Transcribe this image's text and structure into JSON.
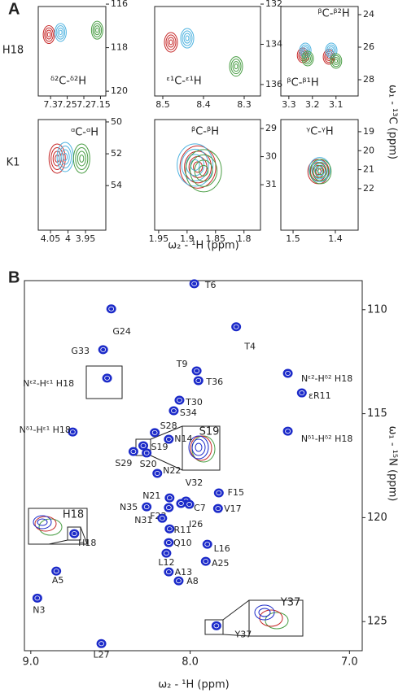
{
  "chart_data": [
    {
      "type": "scatter",
      "panel_label": "A",
      "row_label": "H18",
      "annotations": [
        "ᵟ²C-ᵟ²H"
      ],
      "xlim": [
        7.337,
        7.134
      ],
      "xticks": [
        7.3,
        7.25,
        7.2,
        7.15
      ],
      "ylim": [
        116.11,
        120.22
      ],
      "yticks": [
        116,
        118,
        120
      ],
      "series": [
        {
          "color": "#c62828",
          "x": [
            7.305
          ],
          "values": [
            117.4
          ]
        },
        {
          "color": "#4fb3e0",
          "x": [
            7.27
          ],
          "values": [
            117.3
          ]
        },
        {
          "color": "#4a9e45",
          "x": [
            7.16
          ],
          "values": [
            117.2
          ]
        }
      ]
    },
    {
      "type": "scatter",
      "annotations": [
        "ᵋ¹C-ᵋ¹H"
      ],
      "xlim": [
        8.52,
        8.26
      ],
      "xticks": [
        8.5,
        8.4,
        8.3
      ],
      "ylim": [
        132.12,
        136.57
      ],
      "yticks": [
        132,
        134,
        136
      ],
      "series": [
        {
          "color": "#c62828",
          "x": [
            8.48
          ],
          "values": [
            133.9
          ]
        },
        {
          "color": "#4fb3e0",
          "x": [
            8.44
          ],
          "values": [
            133.7
          ]
        },
        {
          "color": "#4a9e45",
          "x": [
            8.32
          ],
          "values": [
            135.1
          ]
        }
      ]
    },
    {
      "type": "scatter",
      "annotations": [
        "ᵝC-ᵝ²H",
        "ᵝC-ᵝ¹H"
      ],
      "xlim": [
        3.334,
        3.006
      ],
      "xticks": [
        3.3,
        3.2,
        3.1
      ],
      "ylim": [
        23.5,
        29.0
      ],
      "yticks": [
        24,
        26,
        28
      ],
      "ylabel": "ω₁ - ¹³C (ppm)",
      "series": [
        {
          "color": "#c62828",
          "x": [
            3.24,
            3.13
          ],
          "values": [
            26.5,
            26.6
          ]
        },
        {
          "color": "#4fb3e0",
          "x": [
            3.23,
            3.12
          ],
          "values": [
            26.2,
            26.2
          ]
        },
        {
          "color": "#4a9e45",
          "x": [
            3.22,
            3.1
          ],
          "values": [
            26.7,
            26.85
          ]
        }
      ]
    },
    {
      "type": "scatter",
      "row_label": "K1",
      "annotations": [
        "ᵅC-ᵅH"
      ],
      "xlim": [
        4.085,
        3.892
      ],
      "xticks": [
        4.05,
        4,
        3.95
      ],
      "ylim": [
        49.85,
        56.8
      ],
      "yticks": [
        50,
        52,
        54
      ],
      "series": [
        {
          "color": "#c62828",
          "x": [
            4.031
          ],
          "values": [
            52.3
          ]
        },
        {
          "color": "#4fb3e0",
          "x": [
            4.008
          ],
          "values": [
            52.2
          ]
        },
        {
          "color": "#4a9e45",
          "x": [
            3.961
          ],
          "values": [
            52.3
          ]
        }
      ]
    },
    {
      "type": "scatter",
      "annotations": [
        "ᵝC-ᵝH"
      ],
      "xlabel": "ω₂ - ¹H (ppm)",
      "xlim": [
        1.957,
        1.771
      ],
      "xticks": [
        1.95,
        1.9,
        1.85,
        1.8
      ],
      "ylim": [
        28.68,
        32.62
      ],
      "yticks": [
        29,
        30,
        31
      ],
      "series": [
        {
          "color": "#c62828",
          "x": [
            1.881
          ],
          "values": [
            30.37
          ]
        },
        {
          "color": "#4fb3e0",
          "x": [
            1.886
          ],
          "values": [
            30.3
          ]
        },
        {
          "color": "#4a9e45",
          "x": [
            1.871
          ],
          "values": [
            30.5
          ]
        }
      ]
    },
    {
      "type": "scatter",
      "annotations": [
        "ᵞC-ᵞH"
      ],
      "xlim": [
        1.529,
        1.346
      ],
      "xticks": [
        1.5,
        1.4
      ],
      "ylim": [
        18.36,
        24.19
      ],
      "yticks": [
        19,
        20,
        21,
        22
      ],
      "series": [
        {
          "color": "#c62828",
          "x": [
            1.44
          ],
          "values": [
            21.1
          ]
        },
        {
          "color": "#4fb3e0",
          "x": [
            1.437
          ],
          "values": [
            21.0
          ]
        },
        {
          "color": "#4a9e45",
          "x": [
            1.435
          ],
          "values": [
            21.1
          ]
        }
      ]
    },
    {
      "type": "peaks",
      "panel_label": "B",
      "xlabel": "ω₂ - ¹H (ppm)",
      "ylabel": "ω₁ - ¹⁵N (ppm)",
      "color": "#1c2bc9",
      "xlim": [
        9.04,
        6.92
      ],
      "xticks": [
        {
          "value": 9,
          "label": "9.0"
        },
        {
          "value": 8,
          "label": "8.0"
        },
        {
          "value": 7,
          "label": "7.0"
        }
      ],
      "ylim": [
        108.6,
        126.4
      ],
      "yticks": [
        110,
        115,
        120,
        125
      ],
      "labels": [
        "T6",
        "G24",
        "T4",
        "G33",
        "T9",
        "T36",
        "T30",
        "S34",
        "S28",
        "N14",
        "S19",
        "S29",
        "S20",
        "N22",
        "V32",
        "F15",
        "N21",
        "N35",
        "F23",
        "C7",
        "I26",
        "V17",
        "N31",
        "R11",
        "Q10",
        "L16",
        "H18",
        "L12",
        "A25",
        "A13",
        "A5",
        "A8",
        "N3",
        "Y37",
        "L27",
        "Nᵋ²-Hᵋ¹ H18",
        "Nᵋ²-Hᵟ² H18",
        "εR11",
        "Nᵟ¹-Hᵋ¹ H18",
        "Nᵟ¹-Hᵟ² H18"
      ],
      "x": [
        7.974,
        8.495,
        7.711,
        8.546,
        7.959,
        7.948,
        8.067,
        8.103,
        8.222,
        8.134,
        8.294,
        8.356,
        8.273,
        8.206,
        8.026,
        7.82,
        8.129,
        8.273,
        8.134,
        8.057,
        8.005,
        7.825,
        8.175,
        8.129,
        8.134,
        7.892,
        8.727,
        8.149,
        7.902,
        8.134,
        8.84,
        8.072,
        8.959,
        7.835,
        8.557,
        8.521,
        7.387,
        7.299,
        8.737,
        7.387
      ],
      "values": [
        108.75,
        109.96,
        110.82,
        111.92,
        112.94,
        113.41,
        114.35,
        114.86,
        115.91,
        116.23,
        116.54,
        116.82,
        116.89,
        117.87,
        119.2,
        118.81,
        119.05,
        119.48,
        119.52,
        119.32,
        119.36,
        119.56,
        120.03,
        120.54,
        121.2,
        121.28,
        120.77,
        121.71,
        122.1,
        122.61,
        122.57,
        123.04,
        123.87,
        125.2,
        126.06,
        113.29,
        113.06,
        114.0,
        115.88,
        115.84
      ],
      "insets": [
        {
          "label": "S19"
        },
        {
          "label": "H18"
        },
        {
          "label": "Y37"
        }
      ]
    }
  ]
}
